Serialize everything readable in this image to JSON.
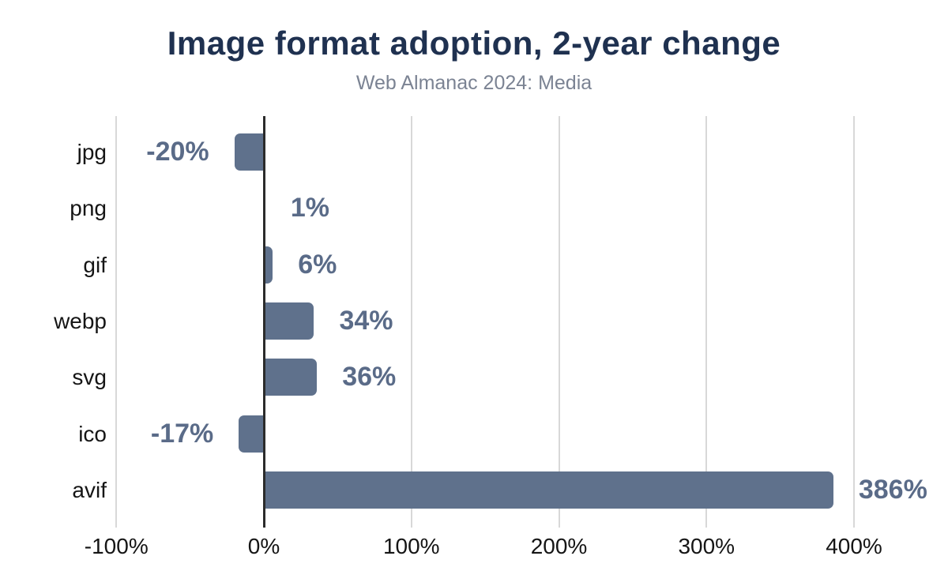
{
  "header": {
    "title": "Image format adoption, 2-year change",
    "subtitle": "Web Almanac 2024: Media"
  },
  "chart_data": {
    "type": "bar",
    "orientation": "horizontal",
    "title": "Image format adoption, 2-year change",
    "subtitle": "Web Almanac 2024: Media",
    "xlabel": "",
    "ylabel": "",
    "categories": [
      "jpg",
      "png",
      "gif",
      "webp",
      "svg",
      "ico",
      "avif"
    ],
    "values": [
      -20,
      1,
      6,
      34,
      36,
      -17,
      386
    ],
    "value_labels": [
      "-20%",
      "1%",
      "6%",
      "34%",
      "36%",
      "-17%",
      "386%"
    ],
    "x_ticks": [
      -100,
      0,
      100,
      200,
      300,
      400
    ],
    "x_tick_labels": [
      "-100%",
      "0%",
      "100%",
      "200%",
      "300%",
      "400%"
    ],
    "xlim": [
      -100,
      464
    ],
    "grid": "vertical-gridlines",
    "legend": "none",
    "colors": {
      "bar": "#5f718c",
      "value_label": "#5a6b88",
      "title": "#1f3150",
      "subtitle": "#7b8393",
      "axis_text": "#151515",
      "gridline": "#d8d8d8",
      "zero_line": "#2b2b2b",
      "background": "#ffffff"
    }
  }
}
